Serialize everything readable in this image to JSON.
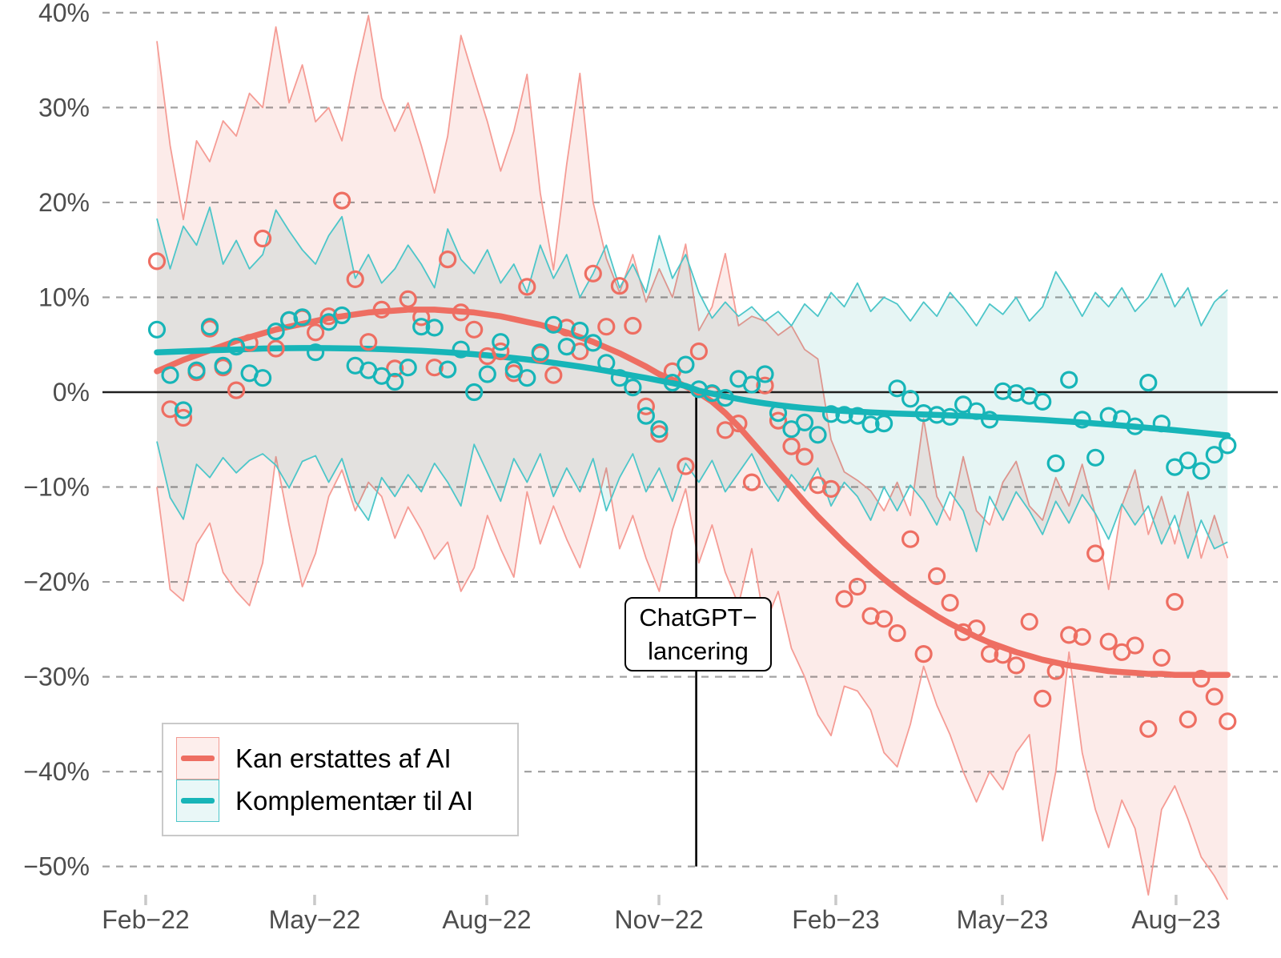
{
  "chart_data": {
    "type": "scatter",
    "title": "",
    "xlabel": "",
    "ylabel": "",
    "x_unit": "week_index",
    "n_weeks": 82,
    "x_axis": {
      "ticks": [
        {
          "label": "Feb−22",
          "week": -0.85
        },
        {
          "label": "May−22",
          "week": 11.93
        },
        {
          "label": "Aug−22",
          "week": 24.95
        },
        {
          "label": "Nov−22",
          "week": 37.98
        },
        {
          "label": "Feb−23",
          "week": 51.36
        },
        {
          "label": "May−23",
          "week": 63.96
        },
        {
          "label": "Aug−23",
          "week": 77.1
        }
      ]
    },
    "y_axis": {
      "ticks": [
        {
          "value": 40,
          "label": "40%"
        },
        {
          "value": 30,
          "label": "30%"
        },
        {
          "value": 20,
          "label": "20%"
        },
        {
          "value": 10,
          "label": "10%"
        },
        {
          "value": 0,
          "label": "0%"
        },
        {
          "value": -10,
          "label": "−10%"
        },
        {
          "value": -20,
          "label": "−20%"
        },
        {
          "value": -30,
          "label": "−30%"
        },
        {
          "value": -40,
          "label": "−40%"
        },
        {
          "value": -50,
          "label": "−50%"
        }
      ],
      "range": [
        -55,
        41
      ],
      "grid": "dashed",
      "zero_line": true
    },
    "annotation": {
      "line1": "ChatGPT−",
      "line2": "lancering",
      "week": 40.8,
      "line_from_value": 0,
      "line_to_value": -50
    },
    "legend_position": "bottom-left-inside",
    "series": [
      {
        "name": "Kan erstattes af AI",
        "color": "#ee6e62",
        "band_fill": "#fcebe9",
        "band_edge": "#f59c95",
        "smooth": [
          2.2,
          2.8,
          3.4,
          3.9,
          4.4,
          4.9,
          5.4,
          5.8,
          6.2,
          6.6,
          6.9,
          7.2,
          7.5,
          7.8,
          8.0,
          8.2,
          8.4,
          8.5,
          8.6,
          8.7,
          8.7,
          8.7,
          8.6,
          8.5,
          8.4,
          8.2,
          8.0,
          7.7,
          7.4,
          7.1,
          6.7,
          6.3,
          5.8,
          5.3,
          4.7,
          4.1,
          3.4,
          2.7,
          1.9,
          1.3,
          0.6,
          -0.1,
          -1.0,
          -2.2,
          -3.6,
          -5.2,
          -6.8,
          -8.4,
          -10.0,
          -11.6,
          -13.1,
          -14.5,
          -15.9,
          -17.2,
          -18.5,
          -19.7,
          -20.8,
          -21.8,
          -22.7,
          -23.6,
          -24.4,
          -25.1,
          -25.8,
          -26.4,
          -26.9,
          -27.4,
          -27.8,
          -28.2,
          -28.5,
          -28.8,
          -29.0,
          -29.2,
          -29.4,
          -29.5,
          -29.6,
          -29.7,
          -29.7,
          -29.8,
          -29.8,
          -29.8,
          -29.8,
          -29.8
        ],
        "points": [
          13.8,
          -1.8,
          -2.7,
          2.1,
          6.7,
          2.6,
          0.2,
          5.2,
          16.2,
          4.6,
          7.6,
          7.8,
          6.3,
          8.0,
          20.2,
          11.9,
          5.3,
          8.7,
          2.5,
          9.8,
          7.9,
          2.6,
          14.0,
          8.4,
          6.6,
          3.8,
          4.3,
          2.0,
          11.1,
          4.0,
          1.8,
          6.8,
          4.3,
          12.5,
          6.9,
          11.2,
          7.0,
          -1.5,
          -4.4,
          2.2,
          -7.8,
          4.3,
          -0.2,
          -4.0,
          -3.3,
          -9.5,
          0.7,
          -3.0,
          -5.7,
          -6.8,
          -9.8,
          -10.2,
          -21.8,
          -20.5,
          -23.6,
          -23.9,
          -25.4,
          -15.5,
          -27.6,
          -19.4,
          -22.2,
          -25.3,
          -24.9,
          -27.6,
          -27.7,
          -28.8,
          -24.2,
          -32.3,
          -29.4,
          -25.6,
          -25.8,
          -17.0,
          -26.3,
          -27.4,
          -26.7,
          -35.5,
          -28.0,
          -22.1,
          -34.5,
          -30.2,
          -32.1,
          -34.7
        ],
        "band_hi": [
          37.0,
          26.0,
          18.2,
          26.5,
          24.3,
          28.6,
          27.0,
          31.5,
          30.0,
          38.5,
          30.5,
          34.5,
          28.5,
          30.0,
          26.5,
          33.5,
          39.7,
          31.0,
          27.5,
          30.5,
          26.0,
          21.0,
          27.0,
          37.6,
          33.0,
          28.5,
          23.3,
          27.5,
          33.5,
          21.0,
          12.9,
          24.0,
          33.6,
          20.0,
          14.1,
          10.5,
          14.5,
          9.5,
          13.0,
          10.0,
          15.6,
          6.5,
          9.0,
          14.6,
          7.0,
          8.0,
          7.5,
          6.0,
          7.0,
          4.5,
          3.5,
          -5.0,
          -8.4,
          -9.3,
          -10.4,
          -12.5,
          -9.5,
          -13.0,
          -2.8,
          -11.0,
          -13.5,
          -6.8,
          -12.5,
          -14.0,
          -9.5,
          -7.3,
          -12.0,
          -13.5,
          -9.0,
          -12.0,
          -7.6,
          -13.0,
          -20.8,
          -12.0,
          -8.2,
          -15.0,
          -11.0,
          -16.0,
          -10.5,
          -17.5,
          -13.0,
          -17.5
        ],
        "band_lo": [
          -10.0,
          -20.8,
          -22.0,
          -16.0,
          -13.8,
          -19.0,
          -21.0,
          -22.5,
          -18.0,
          -6.8,
          -14.0,
          -20.5,
          -17.0,
          -11.0,
          -8.2,
          -12.5,
          -9.5,
          -11.0,
          -15.4,
          -12.1,
          -14.5,
          -17.6,
          -15.8,
          -21.0,
          -18.5,
          -13.0,
          -16.5,
          -19.5,
          -10.5,
          -16.0,
          -12.0,
          -15.5,
          -18.5,
          -13.5,
          -8.0,
          -16.5,
          -13.0,
          -17.5,
          -21.0,
          -14.5,
          -10.2,
          -18.0,
          -14.0,
          -19.0,
          -22.4,
          -16.5,
          -24.5,
          -21.0,
          -27.0,
          -30.0,
          -34.0,
          -36.2,
          -31.0,
          -31.5,
          -33.5,
          -38.0,
          -39.5,
          -35.0,
          -28.9,
          -33.0,
          -36.1,
          -40.0,
          -43.2,
          -40.0,
          -41.9,
          -38.0,
          -36.1,
          -47.3,
          -40.0,
          -27.4,
          -38.0,
          -44.0,
          -48.0,
          -43.0,
          -46.0,
          -53.0,
          -44.0,
          -41.5,
          -45.0,
          -49.0,
          -51.0,
          -53.5
        ]
      },
      {
        "name": "Komplementær til AI",
        "color": "#17b5b8",
        "band_fill": "#e6f5f4",
        "band_edge": "#4dc6c9",
        "smooth": [
          4.2,
          4.25,
          4.3,
          4.35,
          4.4,
          4.45,
          4.5,
          4.55,
          4.6,
          4.62,
          4.64,
          4.65,
          4.65,
          4.64,
          4.62,
          4.6,
          4.57,
          4.53,
          4.48,
          4.42,
          4.36,
          4.28,
          4.2,
          4.1,
          4.0,
          3.88,
          3.75,
          3.6,
          3.45,
          3.28,
          3.1,
          2.9,
          2.7,
          2.48,
          2.25,
          2.0,
          1.75,
          1.5,
          1.22,
          0.95,
          0.66,
          0.15,
          -0.15,
          -0.45,
          -0.72,
          -0.97,
          -1.18,
          -1.37,
          -1.53,
          -1.67,
          -1.79,
          -1.89,
          -1.98,
          -2.06,
          -2.13,
          -2.19,
          -2.25,
          -2.3,
          -2.35,
          -2.4,
          -2.45,
          -2.5,
          -2.56,
          -2.62,
          -2.69,
          -2.76,
          -2.84,
          -2.92,
          -3.01,
          -3.1,
          -3.2,
          -3.3,
          -3.41,
          -3.52,
          -3.64,
          -3.76,
          -3.88,
          -4.01,
          -4.14,
          -4.28,
          -4.42,
          -4.56
        ],
        "points": [
          6.6,
          1.8,
          -1.9,
          2.3,
          6.9,
          2.8,
          4.8,
          2.0,
          1.5,
          6.4,
          7.6,
          7.9,
          4.2,
          7.4,
          8.1,
          2.8,
          2.3,
          1.7,
          1.1,
          2.6,
          6.9,
          6.8,
          2.4,
          4.5,
          0.0,
          1.9,
          5.3,
          2.4,
          1.5,
          4.2,
          7.1,
          4.8,
          6.5,
          5.2,
          3.1,
          1.5,
          0.5,
          -2.5,
          -3.9,
          1.0,
          2.9,
          0.3,
          -0.1,
          -0.6,
          1.4,
          0.8,
          1.9,
          -2.2,
          -3.9,
          -3.2,
          -4.5,
          -2.3,
          -2.4,
          -2.5,
          -3.4,
          -3.3,
          0.4,
          -0.7,
          -2.2,
          -2.4,
          -2.6,
          -1.3,
          -2.0,
          -2.9,
          0.1,
          -0.1,
          -0.4,
          -1.0,
          -7.5,
          1.3,
          -2.9,
          -6.9,
          -2.5,
          -2.8,
          -3.6,
          1.0,
          -3.3,
          -7.9,
          -7.2,
          -8.3,
          -6.6,
          -5.6
        ],
        "band_hi": [
          18.3,
          13.0,
          17.5,
          15.5,
          19.5,
          13.5,
          16.0,
          13.0,
          14.5,
          19.2,
          17.0,
          15.0,
          13.5,
          16.5,
          18.5,
          12.0,
          14.5,
          11.5,
          13.0,
          15.5,
          13.5,
          11.0,
          17.2,
          14.0,
          12.5,
          15.0,
          11.5,
          13.5,
          10.5,
          15.5,
          12.0,
          14.5,
          10.0,
          12.5,
          15.5,
          11.0,
          13.5,
          10.5,
          16.5,
          12.0,
          14.5,
          10.5,
          7.8,
          9.5,
          8.0,
          9.0,
          7.5,
          8.5,
          7.0,
          9.3,
          8.0,
          10.5,
          9.0,
          11.5,
          8.5,
          10.0,
          9.3,
          7.5,
          9.5,
          8.0,
          10.5,
          8.9,
          7.0,
          9.3,
          8.2,
          10.0,
          7.5,
          9.0,
          12.7,
          10.5,
          8.0,
          10.5,
          9.0,
          11.0,
          8.5,
          10.0,
          12.5,
          9.0,
          11.0,
          7.0,
          9.5,
          10.8
        ],
        "band_lo": [
          -5.2,
          -11.1,
          -13.4,
          -7.6,
          -9.0,
          -6.9,
          -8.5,
          -7.2,
          -6.5,
          -7.7,
          -10.1,
          -7.3,
          -6.7,
          -9.5,
          -7.0,
          -11.5,
          -13.5,
          -9.0,
          -11.0,
          -8.7,
          -10.5,
          -7.5,
          -9.5,
          -12.0,
          -5.5,
          -8.5,
          -11.5,
          -7.0,
          -9.5,
          -6.5,
          -11.0,
          -8.0,
          -10.5,
          -7.0,
          -12.5,
          -9.0,
          -6.5,
          -10.5,
          -8.0,
          -11.5,
          -7.5,
          -9.5,
          -7.2,
          -10.5,
          -8.5,
          -6.5,
          -9.5,
          -11.5,
          -8.7,
          -10.4,
          -8.0,
          -12.0,
          -9.5,
          -11.0,
          -13.5,
          -10.0,
          -12.5,
          -9.8,
          -11.5,
          -14.0,
          -10.5,
          -12.5,
          -16.8,
          -11.0,
          -13.5,
          -10.5,
          -12.5,
          -15.0,
          -11.5,
          -13.8,
          -10.8,
          -12.8,
          -15.5,
          -11.8,
          -14.0,
          -12.0,
          -16.0,
          -13.0,
          -17.5,
          -13.5,
          -16.5,
          -15.8
        ]
      }
    ],
    "colors": {
      "grid": "#a3a3a3",
      "zero_line": "#1f1f1f",
      "launch_line": "#000000",
      "axis_text": "#4d4d4d",
      "tick_mark": "#c9c9c9"
    }
  },
  "legend": {
    "items": [
      {
        "label": "Kan erstattes af AI"
      },
      {
        "label": "Komplementær til AI"
      }
    ]
  },
  "annotation": {
    "line1": "ChatGPT−",
    "line2": "lancering"
  }
}
